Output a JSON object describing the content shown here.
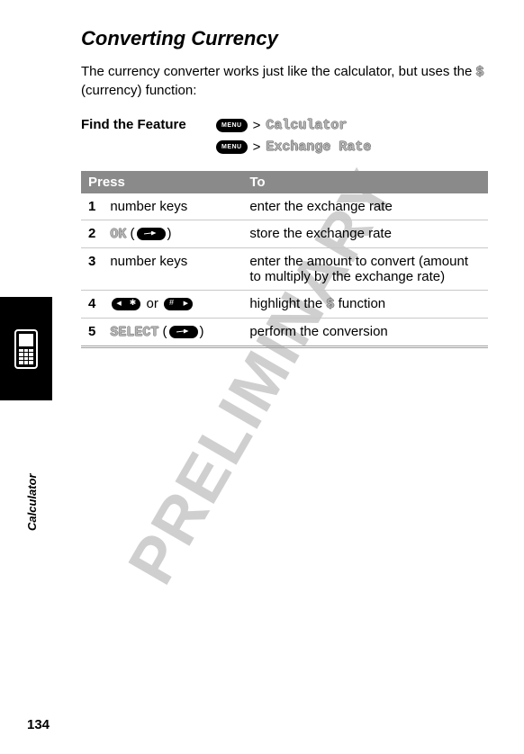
{
  "watermark": "PRELIMINARY",
  "title": "Converting Currency",
  "intro_part1": "The currency converter works just like the calculator, but uses the ",
  "intro_symbol": "$",
  "intro_part2": " (currency) function:",
  "feature_label": "Find the Feature",
  "menu_label": "MENU",
  "gt": ">",
  "path1": "Calculator",
  "path2": "Exchange Rate",
  "table": {
    "header_press": "Press",
    "header_to": "To",
    "rows": [
      {
        "n": "1",
        "press_text": "number keys",
        "press_soft": "",
        "press_icon": "",
        "to": "enter the exchange rate"
      },
      {
        "n": "2",
        "press_text": "",
        "press_soft": "OK",
        "press_icon": "send",
        "to": "store the exchange rate"
      },
      {
        "n": "3",
        "press_text": "number keys",
        "press_soft": "",
        "press_icon": "",
        "to": "enter the amount to convert (amount to multiply by the exchange rate)"
      },
      {
        "n": "4",
        "press_text": "",
        "press_soft": "",
        "press_icon": "starhash",
        "to_pre": "highlight the ",
        "to_sym": "$",
        "to_post": " function"
      },
      {
        "n": "5",
        "press_text": "",
        "press_soft": "SELECT",
        "press_icon": "send",
        "to": "perform the conversion"
      }
    ],
    "or": " or "
  },
  "side_label": "Calculator",
  "page_number": "134"
}
